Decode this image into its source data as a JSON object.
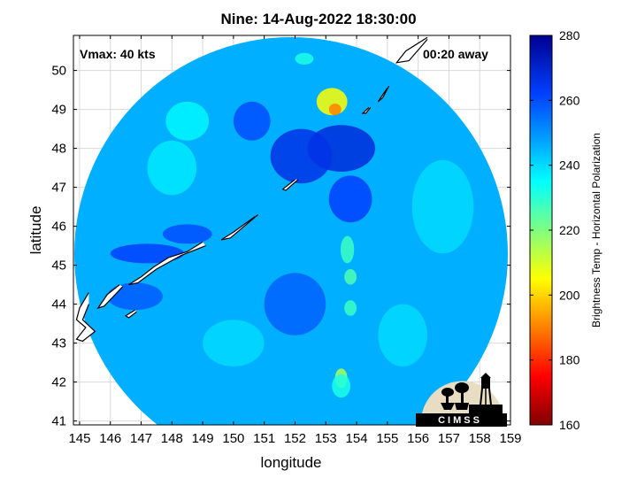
{
  "title": "Nine: 14-Aug-2022 18:30:00",
  "annotations": {
    "vmax": "Vmax: 40 kts",
    "time_away": "00:20 away"
  },
  "logo_text": "CIMSS",
  "chart_data": {
    "type": "heatmap",
    "title": "Nine: 14-Aug-2022 18:30:00",
    "xlabel": "longitude",
    "ylabel": "latitude",
    "xlim": [
      144.8,
      159
    ],
    "ylim": [
      40.9,
      50.9
    ],
    "x_ticks": [
      "145",
      "146",
      "147",
      "148",
      "149",
      "150",
      "151",
      "152",
      "153",
      "154",
      "155",
      "156",
      "157",
      "158",
      "159"
    ],
    "y_ticks": [
      "41",
      "42",
      "43",
      "44",
      "45",
      "46",
      "47",
      "48",
      "49",
      "50"
    ],
    "grid": true,
    "swath_shape": "circle",
    "colorbar": {
      "label": "Brightness Temp - Horizontal Polarization",
      "min": 160,
      "max": 280,
      "ticks": [
        "160",
        "180",
        "200",
        "220",
        "240",
        "260",
        "280"
      ],
      "colormap": [
        {
          "v": 160,
          "c": "#800000"
        },
        {
          "v": 175,
          "c": "#ff0000"
        },
        {
          "v": 190,
          "c": "#ff8000"
        },
        {
          "v": 205,
          "c": "#ffff00"
        },
        {
          "v": 220,
          "c": "#80ff80"
        },
        {
          "v": 235,
          "c": "#00ffff"
        },
        {
          "v": 248,
          "c": "#00a0ff"
        },
        {
          "v": 262,
          "c": "#0040ff"
        },
        {
          "v": 280,
          "c": "#000090"
        }
      ]
    },
    "background_tb": 246,
    "features": [
      {
        "lon": 153.2,
        "lat": 49.2,
        "tb": 205,
        "rx": 0.5,
        "ry": 0.35
      },
      {
        "lon": 153.3,
        "lat": 49.0,
        "tb": 190,
        "rx": 0.2,
        "ry": 0.15
      },
      {
        "lon": 152.3,
        "lat": 50.3,
        "tb": 232,
        "rx": 0.3,
        "ry": 0.15
      },
      {
        "lon": 153.5,
        "lat": 48.0,
        "tb": 268,
        "rx": 1.1,
        "ry": 0.6
      },
      {
        "lon": 152.2,
        "lat": 47.8,
        "tb": 266,
        "rx": 1.0,
        "ry": 0.7
      },
      {
        "lon": 153.8,
        "lat": 46.7,
        "tb": 262,
        "rx": 0.7,
        "ry": 0.6
      },
      {
        "lon": 150.6,
        "lat": 48.7,
        "tb": 260,
        "rx": 0.6,
        "ry": 0.5
      },
      {
        "lon": 153.7,
        "lat": 45.4,
        "tb": 228,
        "rx": 0.22,
        "ry": 0.35
      },
      {
        "lon": 153.8,
        "lat": 44.7,
        "tb": 226,
        "rx": 0.2,
        "ry": 0.2
      },
      {
        "lon": 153.8,
        "lat": 43.9,
        "tb": 228,
        "rx": 0.2,
        "ry": 0.2
      },
      {
        "lon": 153.5,
        "lat": 42.1,
        "tb": 215,
        "rx": 0.2,
        "ry": 0.25
      },
      {
        "lon": 153.5,
        "lat": 41.9,
        "tb": 232,
        "rx": 0.3,
        "ry": 0.3
      },
      {
        "lon": 147.2,
        "lat": 45.3,
        "tb": 262,
        "rx": 1.2,
        "ry": 0.25
      },
      {
        "lon": 148.5,
        "lat": 45.8,
        "tb": 260,
        "rx": 0.8,
        "ry": 0.25
      },
      {
        "lon": 146.8,
        "lat": 44.2,
        "tb": 258,
        "rx": 0.9,
        "ry": 0.35
      },
      {
        "lon": 152.0,
        "lat": 44.0,
        "tb": 257,
        "rx": 1.0,
        "ry": 0.8
      },
      {
        "lon": 148.0,
        "lat": 47.5,
        "tb": 238,
        "rx": 0.8,
        "ry": 0.7
      },
      {
        "lon": 148.5,
        "lat": 48.7,
        "tb": 236,
        "rx": 0.7,
        "ry": 0.5
      },
      {
        "lon": 150.0,
        "lat": 43.0,
        "tb": 240,
        "rx": 1.0,
        "ry": 0.6
      },
      {
        "lon": 155.5,
        "lat": 43.2,
        "tb": 240,
        "rx": 0.8,
        "ry": 0.8
      },
      {
        "lon": 156.8,
        "lat": 46.5,
        "tb": 240,
        "rx": 1.0,
        "ry": 1.2
      }
    ],
    "coastlines": [
      [
        [
          156.3,
          50.85
        ],
        [
          155.6,
          50.5
        ],
        [
          155.3,
          50.2
        ],
        [
          155.7,
          50.25
        ],
        [
          156.3,
          50.8
        ]
      ],
      [
        [
          155.0,
          49.55
        ],
        [
          154.7,
          49.2
        ],
        [
          154.85,
          49.3
        ],
        [
          155.05,
          49.6
        ]
      ],
      [
        [
          154.4,
          49.05
        ],
        [
          154.2,
          48.9
        ],
        [
          154.3,
          48.9
        ],
        [
          154.45,
          49.05
        ]
      ],
      [
        [
          152.0,
          47.2
        ],
        [
          151.6,
          46.95
        ],
        [
          151.7,
          46.92
        ],
        [
          152.1,
          47.2
        ]
      ],
      [
        [
          150.7,
          46.25
        ],
        [
          150.0,
          45.85
        ],
        [
          149.6,
          45.65
        ],
        [
          149.9,
          45.7
        ],
        [
          150.8,
          46.3
        ]
      ],
      [
        [
          149.0,
          45.6
        ],
        [
          148.5,
          45.35
        ],
        [
          147.9,
          45.2
        ],
        [
          147.4,
          44.95
        ],
        [
          147.0,
          44.7
        ],
        [
          146.6,
          44.5
        ],
        [
          146.9,
          44.55
        ],
        [
          147.5,
          44.9
        ],
        [
          148.3,
          45.25
        ],
        [
          149.1,
          45.5
        ]
      ],
      [
        [
          146.3,
          44.5
        ],
        [
          145.9,
          44.25
        ],
        [
          145.6,
          43.9
        ],
        [
          145.8,
          43.95
        ],
        [
          146.4,
          44.45
        ]
      ],
      [
        [
          146.8,
          43.85
        ],
        [
          146.5,
          43.7
        ],
        [
          146.6,
          43.65
        ],
        [
          146.85,
          43.8
        ]
      ],
      [
        [
          145.3,
          44.3
        ],
        [
          145.0,
          43.9
        ],
        [
          144.9,
          43.6
        ],
        [
          145.2,
          43.4
        ],
        [
          144.9,
          43.1
        ],
        [
          145.1,
          43.05
        ],
        [
          145.5,
          43.3
        ],
        [
          145.1,
          43.6
        ],
        [
          145.3,
          44.0
        ]
      ]
    ]
  }
}
